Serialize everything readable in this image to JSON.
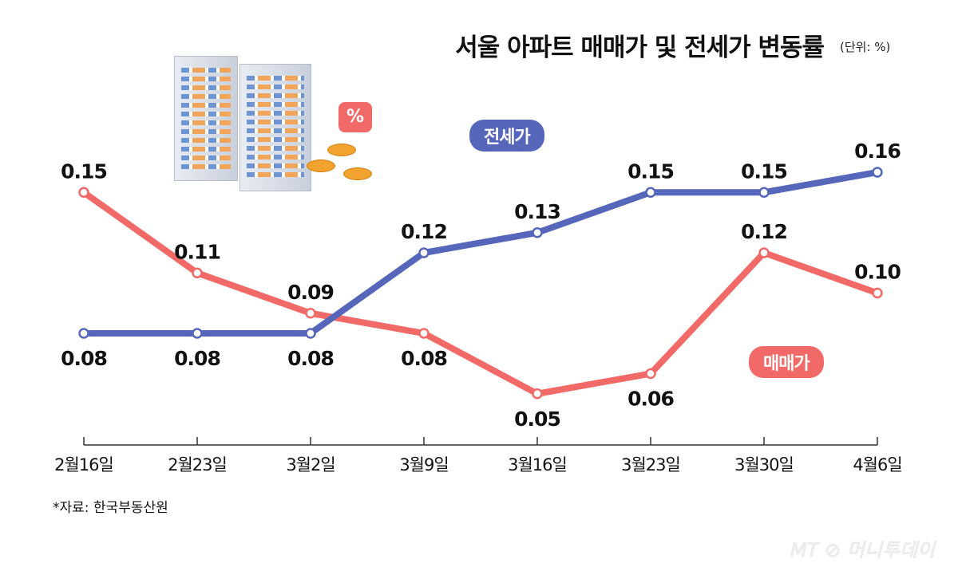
{
  "header": {
    "title": "서울 아파트 매매가 및 전세가 변동률",
    "unit": "(단위: %)"
  },
  "illustration": {
    "badge_symbol": "%"
  },
  "source": "*자료: 한국부동산원",
  "watermark": "MT 머니투데이",
  "chart_data": {
    "type": "line",
    "title": "서울 아파트 매매가 및 전세가 변동률",
    "unit": "%",
    "categories": [
      "2월16일",
      "2월23일",
      "3월2일",
      "3월9일",
      "3월16일",
      "3월23일",
      "3월30일",
      "4월6일"
    ],
    "series": [
      {
        "name": "전세가",
        "color": "#5566bb",
        "values": [
          0.08,
          0.08,
          0.08,
          0.12,
          0.13,
          0.15,
          0.15,
          0.16
        ]
      },
      {
        "name": "매매가",
        "color": "#f26a67",
        "values": [
          0.15,
          0.11,
          0.09,
          0.08,
          0.05,
          0.06,
          0.12,
          0.1
        ]
      }
    ],
    "ylim": [
      0.03,
      0.17
    ],
    "grid": false
  }
}
